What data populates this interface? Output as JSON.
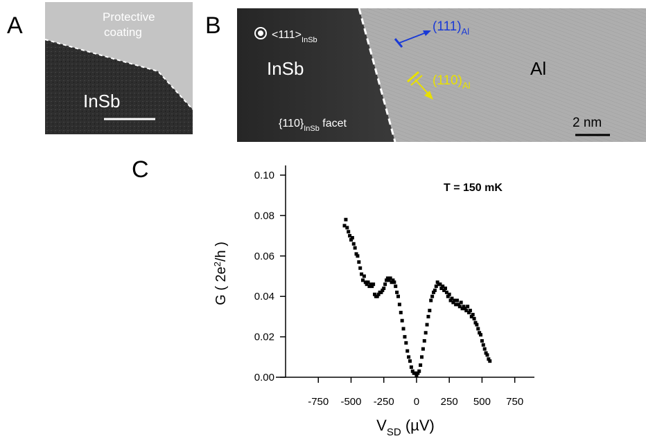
{
  "panel_labels": [
    "A",
    "B",
    "C"
  ],
  "panel_a": {
    "coating_lines": [
      "Protective",
      "coating"
    ],
    "material": "InSb"
  },
  "panel_b": {
    "direction": "<111>",
    "direction_sub": "InSb",
    "left_material": "InSb",
    "facet": "{110}",
    "facet_sub": "InSb",
    "facet_word": " facet",
    "arrow_111": "(111)",
    "arrow_111_sub": "Al",
    "arrow_110": "(110)",
    "arrow_110_sub": "Al",
    "right_material": "Al",
    "scale": "2 nm"
  },
  "chart_data": {
    "type": "scatter",
    "y_label": [
      "G ( 2e",
      "2",
      "/h )"
    ],
    "x_label": [
      "V",
      "SD",
      " (µV)"
    ],
    "annotation": "T = 150 mK",
    "xlim": [
      -1000,
      900
    ],
    "ylim": [
      0,
      0.1
    ],
    "xticks": [
      -750,
      -500,
      -250,
      0,
      250,
      500,
      750
    ],
    "yticks": [
      {
        "value": 0,
        "label": "0.00"
      },
      {
        "value": 0.02,
        "label": "0.02"
      },
      {
        "value": 0.04,
        "label": "0.04"
      },
      {
        "value": 0.06,
        "label": "0.06"
      },
      {
        "value": 0.08,
        "label": "0.08"
      },
      {
        "value": 0.1,
        "label": "0.10"
      }
    ],
    "color": "#000000",
    "x": [
      -550,
      -540,
      -530,
      -520,
      -510,
      -500,
      -490,
      -480,
      -470,
      -460,
      -450,
      -440,
      -430,
      -420,
      -410,
      -400,
      -390,
      -380,
      -370,
      -360,
      -350,
      -340,
      -330,
      -320,
      -310,
      -300,
      -290,
      -280,
      -270,
      -260,
      -250,
      -240,
      -230,
      -220,
      -210,
      -200,
      -190,
      -180,
      -170,
      -160,
      -150,
      -140,
      -130,
      -120,
      -110,
      -100,
      -90,
      -80,
      -70,
      -60,
      -50,
      -40,
      -30,
      -20,
      -10,
      0,
      10,
      20,
      30,
      40,
      50,
      60,
      70,
      80,
      90,
      100,
      110,
      120,
      130,
      140,
      150,
      160,
      170,
      180,
      190,
      200,
      210,
      220,
      230,
      240,
      250,
      260,
      270,
      280,
      290,
      300,
      310,
      320,
      330,
      340,
      350,
      360,
      370,
      380,
      390,
      400,
      410,
      420,
      430,
      440,
      450,
      460,
      470,
      480,
      490,
      500,
      510,
      520,
      530,
      540,
      550,
      560
    ],
    "values": [
      0.075,
      0.078,
      0.074,
      0.072,
      0.07,
      0.068,
      0.069,
      0.066,
      0.064,
      0.061,
      0.06,
      0.057,
      0.054,
      0.051,
      0.048,
      0.05,
      0.047,
      0.046,
      0.047,
      0.045,
      0.046,
      0.045,
      0.046,
      0.041,
      0.04,
      0.04,
      0.041,
      0.042,
      0.042,
      0.043,
      0.044,
      0.046,
      0.048,
      0.049,
      0.048,
      0.049,
      0.047,
      0.048,
      0.047,
      0.045,
      0.042,
      0.04,
      0.036,
      0.032,
      0.028,
      0.024,
      0.02,
      0.017,
      0.013,
      0.01,
      0.008,
      0.005,
      0.003,
      0.002,
      0.002,
      0.001,
      0.002,
      0.003,
      0.006,
      0.01,
      0.014,
      0.018,
      0.022,
      0.026,
      0.03,
      0.033,
      0.038,
      0.04,
      0.042,
      0.043,
      0.045,
      0.047,
      0.046,
      0.046,
      0.044,
      0.045,
      0.043,
      0.044,
      0.042,
      0.04,
      0.041,
      0.038,
      0.039,
      0.037,
      0.038,
      0.036,
      0.038,
      0.036,
      0.035,
      0.037,
      0.034,
      0.035,
      0.034,
      0.033,
      0.035,
      0.032,
      0.033,
      0.03,
      0.031,
      0.029,
      0.027,
      0.026,
      0.024,
      0.022,
      0.021,
      0.018,
      0.016,
      0.014,
      0.012,
      0.011,
      0.009,
      0.008
    ]
  }
}
